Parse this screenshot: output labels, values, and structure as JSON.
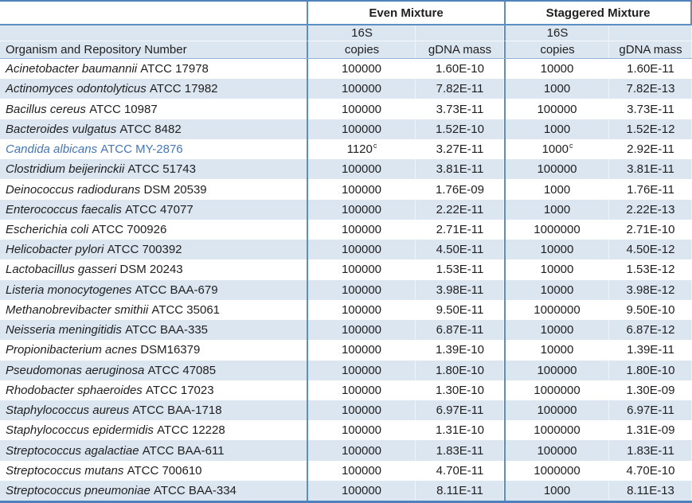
{
  "colors": {
    "border_outer": "#4f81bd",
    "border_inner": "#5b8ec4",
    "stripe": "#dce6f1",
    "highlight_text": "#4576b5",
    "text": "#1f1f1f"
  },
  "header": {
    "group_even": "Even Mixture",
    "group_staggered": "Staggered Mixture",
    "organism_col": "Organism and Repository Number",
    "copies_line1": "16S",
    "copies_line2": "copies",
    "gdna_col": "gDNA mass"
  },
  "rows": [
    {
      "organism": "Acinetobacter baumannii",
      "repository": "ATCC 17978",
      "even_copies": "100000",
      "even_copies_note": "",
      "even_gdna": "1.60E-10",
      "stag_copies": "10000",
      "stag_copies_note": "",
      "stag_gdna": "1.60E-11",
      "highlight": false
    },
    {
      "organism": "Actinomyces odontolyticus",
      "repository": "ATCC 17982",
      "even_copies": "100000",
      "even_copies_note": "",
      "even_gdna": "7.82E-11",
      "stag_copies": "1000",
      "stag_copies_note": "",
      "stag_gdna": "7.82E-13",
      "highlight": false
    },
    {
      "organism": "Bacillus cereus",
      "repository": "ATCC 10987",
      "even_copies": "100000",
      "even_copies_note": "",
      "even_gdna": "3.73E-11",
      "stag_copies": "100000",
      "stag_copies_note": "",
      "stag_gdna": "3.73E-11",
      "highlight": false
    },
    {
      "organism": "Bacteroides vulgatus",
      "repository": "ATCC 8482",
      "even_copies": "100000",
      "even_copies_note": "",
      "even_gdna": "1.52E-10",
      "stag_copies": "1000",
      "stag_copies_note": "",
      "stag_gdna": "1.52E-12",
      "highlight": false
    },
    {
      "organism": "Candida albicans",
      "repository": "ATCC MY-2876",
      "even_copies": "1120",
      "even_copies_note": "c",
      "even_gdna": "3.27E-11",
      "stag_copies": "1000",
      "stag_copies_note": "c",
      "stag_gdna": "2.92E-11",
      "highlight": true
    },
    {
      "organism": "Clostridium beijerinckii",
      "repository": "ATCC 51743",
      "even_copies": "100000",
      "even_copies_note": "",
      "even_gdna": "3.81E-11",
      "stag_copies": "100000",
      "stag_copies_note": "",
      "stag_gdna": "3.81E-11",
      "highlight": false
    },
    {
      "organism": "Deinococcus radiodurans",
      "repository": "DSM 20539",
      "even_copies": "100000",
      "even_copies_note": "",
      "even_gdna": "1.76E-09",
      "stag_copies": "1000",
      "stag_copies_note": "",
      "stag_gdna": "1.76E-11",
      "highlight": false
    },
    {
      "organism": "Enterococcus faecalis",
      "repository": "ATCC 47077",
      "even_copies": "100000",
      "even_copies_note": "",
      "even_gdna": "2.22E-11",
      "stag_copies": "1000",
      "stag_copies_note": "",
      "stag_gdna": "2.22E-13",
      "highlight": false
    },
    {
      "organism": "Escherichia coli",
      "repository": "ATCC 700926",
      "even_copies": "100000",
      "even_copies_note": "",
      "even_gdna": "2.71E-11",
      "stag_copies": "1000000",
      "stag_copies_note": "",
      "stag_gdna": "2.71E-10",
      "highlight": false
    },
    {
      "organism": "Helicobacter pylori",
      "repository": "ATCC 700392",
      "even_copies": "100000",
      "even_copies_note": "",
      "even_gdna": "4.50E-11",
      "stag_copies": "10000",
      "stag_copies_note": "",
      "stag_gdna": "4.50E-12",
      "highlight": false
    },
    {
      "organism": "Lactobacillus gasseri",
      "repository": "DSM 20243",
      "even_copies": "100000",
      "even_copies_note": "",
      "even_gdna": "1.53E-11",
      "stag_copies": "10000",
      "stag_copies_note": "",
      "stag_gdna": "1.53E-12",
      "highlight": false
    },
    {
      "organism": "Listeria monocytogenes",
      "repository": "ATCC BAA-679",
      "even_copies": "100000",
      "even_copies_note": "",
      "even_gdna": "3.98E-11",
      "stag_copies": "10000",
      "stag_copies_note": "",
      "stag_gdna": "3.98E-12",
      "highlight": false
    },
    {
      "organism": "Methanobrevibacter smithii",
      "repository": "ATCC 35061",
      "even_copies": "100000",
      "even_copies_note": "",
      "even_gdna": "9.50E-11",
      "stag_copies": "1000000",
      "stag_copies_note": "",
      "stag_gdna": "9.50E-10",
      "highlight": false
    },
    {
      "organism": "Neisseria meningitidis",
      "repository": "ATCC BAA-335",
      "even_copies": "100000",
      "even_copies_note": "",
      "even_gdna": "6.87E-11",
      "stag_copies": "10000",
      "stag_copies_note": "",
      "stag_gdna": "6.87E-12",
      "highlight": false
    },
    {
      "organism": "Propionibacterium acnes",
      "repository": "DSM16379",
      "even_copies": "100000",
      "even_copies_note": "",
      "even_gdna": "1.39E-10",
      "stag_copies": "10000",
      "stag_copies_note": "",
      "stag_gdna": "1.39E-11",
      "highlight": false
    },
    {
      "organism": "Pseudomonas aeruginosa",
      "repository": "ATCC 47085",
      "even_copies": "100000",
      "even_copies_note": "",
      "even_gdna": "1.80E-10",
      "stag_copies": "100000",
      "stag_copies_note": "",
      "stag_gdna": "1.80E-10",
      "highlight": false
    },
    {
      "organism": "Rhodobacter sphaeroides",
      "repository": "ATCC 17023",
      "even_copies": "100000",
      "even_copies_note": "",
      "even_gdna": "1.30E-10",
      "stag_copies": "1000000",
      "stag_copies_note": "",
      "stag_gdna": "1.30E-09",
      "highlight": false
    },
    {
      "organism": "Staphylococcus aureus",
      "repository": "ATCC BAA-1718",
      "even_copies": "100000",
      "even_copies_note": "",
      "even_gdna": "6.97E-11",
      "stag_copies": "100000",
      "stag_copies_note": "",
      "stag_gdna": "6.97E-11",
      "highlight": false
    },
    {
      "organism": "Staphylococcus epidermidis",
      "repository": "ATCC 12228",
      "even_copies": "100000",
      "even_copies_note": "",
      "even_gdna": "1.31E-10",
      "stag_copies": "1000000",
      "stag_copies_note": "",
      "stag_gdna": "1.31E-09",
      "highlight": false
    },
    {
      "organism": "Streptococcus agalactiae",
      "repository": "ATCC BAA-611",
      "even_copies": "100000",
      "even_copies_note": "",
      "even_gdna": "1.83E-11",
      "stag_copies": "100000",
      "stag_copies_note": "",
      "stag_gdna": "1.83E-11",
      "highlight": false
    },
    {
      "organism": "Streptococcus mutans",
      "repository": "ATCC 700610",
      "even_copies": "100000",
      "even_copies_note": "",
      "even_gdna": "4.70E-11",
      "stag_copies": "1000000",
      "stag_copies_note": "",
      "stag_gdna": "4.70E-10",
      "highlight": false
    },
    {
      "organism": "Streptococcus pneumoniae",
      "repository": "ATCC BAA-334",
      "even_copies": "100000",
      "even_copies_note": "",
      "even_gdna": "8.11E-11",
      "stag_copies": "1000",
      "stag_copies_note": "",
      "stag_gdna": "8.11E-13",
      "highlight": false
    }
  ]
}
